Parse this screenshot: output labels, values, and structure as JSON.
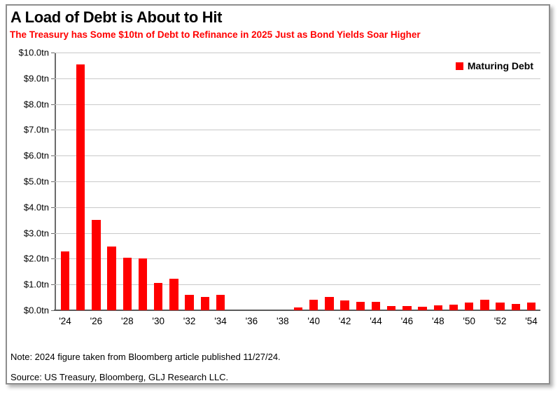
{
  "card": {
    "title": "A Load of Debt is About to Hit",
    "subtitle": "The Treasury has Some $10tn of Debt to Refinance in 2025 Just as Bond Yields Soar Higher",
    "note": "Note: 2024 figure taken from Bloomberg article published 11/27/24.",
    "source": "Source: US Treasury, Bloomberg, GLJ Research LLC."
  },
  "chart_data": {
    "type": "bar",
    "title": "A Load of Debt is About to Hit",
    "subtitle": "The Treasury has Some $10tn of Debt to Refinance in 2025 Just as Bond Yields Soar Higher",
    "legend_label": "Maturing Debt",
    "legend_position": "top-right",
    "bar_color": "#ff0000",
    "grid": true,
    "ylim": [
      0,
      10
    ],
    "ytick_labels": [
      "$10.0tn",
      "$9.0tn",
      "$8.0tn",
      "$7.0tn",
      "$6.0tn",
      "$5.0tn",
      "$4.0tn",
      "$3.0tn",
      "$2.0tn",
      "$1.0tn",
      "$0.0tn"
    ],
    "xtick_labels": [
      "'24",
      "'26",
      "'28",
      "'30",
      "'32",
      "'34",
      "'36",
      "'38",
      "'40",
      "'42",
      "'44",
      "'46",
      "'48",
      "'50",
      "'52",
      "'54"
    ],
    "categories": [
      "'24",
      "'25",
      "'26",
      "'27",
      "'28",
      "'29",
      "'30",
      "'31",
      "'32",
      "'33",
      "'34",
      "'35",
      "'36",
      "'37",
      "'38",
      "'39",
      "'40",
      "'41",
      "'42",
      "'43",
      "'44",
      "'45",
      "'46",
      "'47",
      "'48",
      "'49",
      "'50",
      "'51",
      "'52",
      "'53",
      "'54"
    ],
    "values": [
      2.28,
      9.55,
      3.5,
      2.47,
      2.05,
      2.0,
      1.05,
      1.22,
      0.6,
      0.52,
      0.6,
      0,
      0,
      0,
      0,
      0.12,
      0.42,
      0.53,
      0.38,
      0.33,
      0.34,
      0.15,
      0.15,
      0.14,
      0.18,
      0.21,
      0.3,
      0.4,
      0.3,
      0.25,
      0.31
    ]
  }
}
